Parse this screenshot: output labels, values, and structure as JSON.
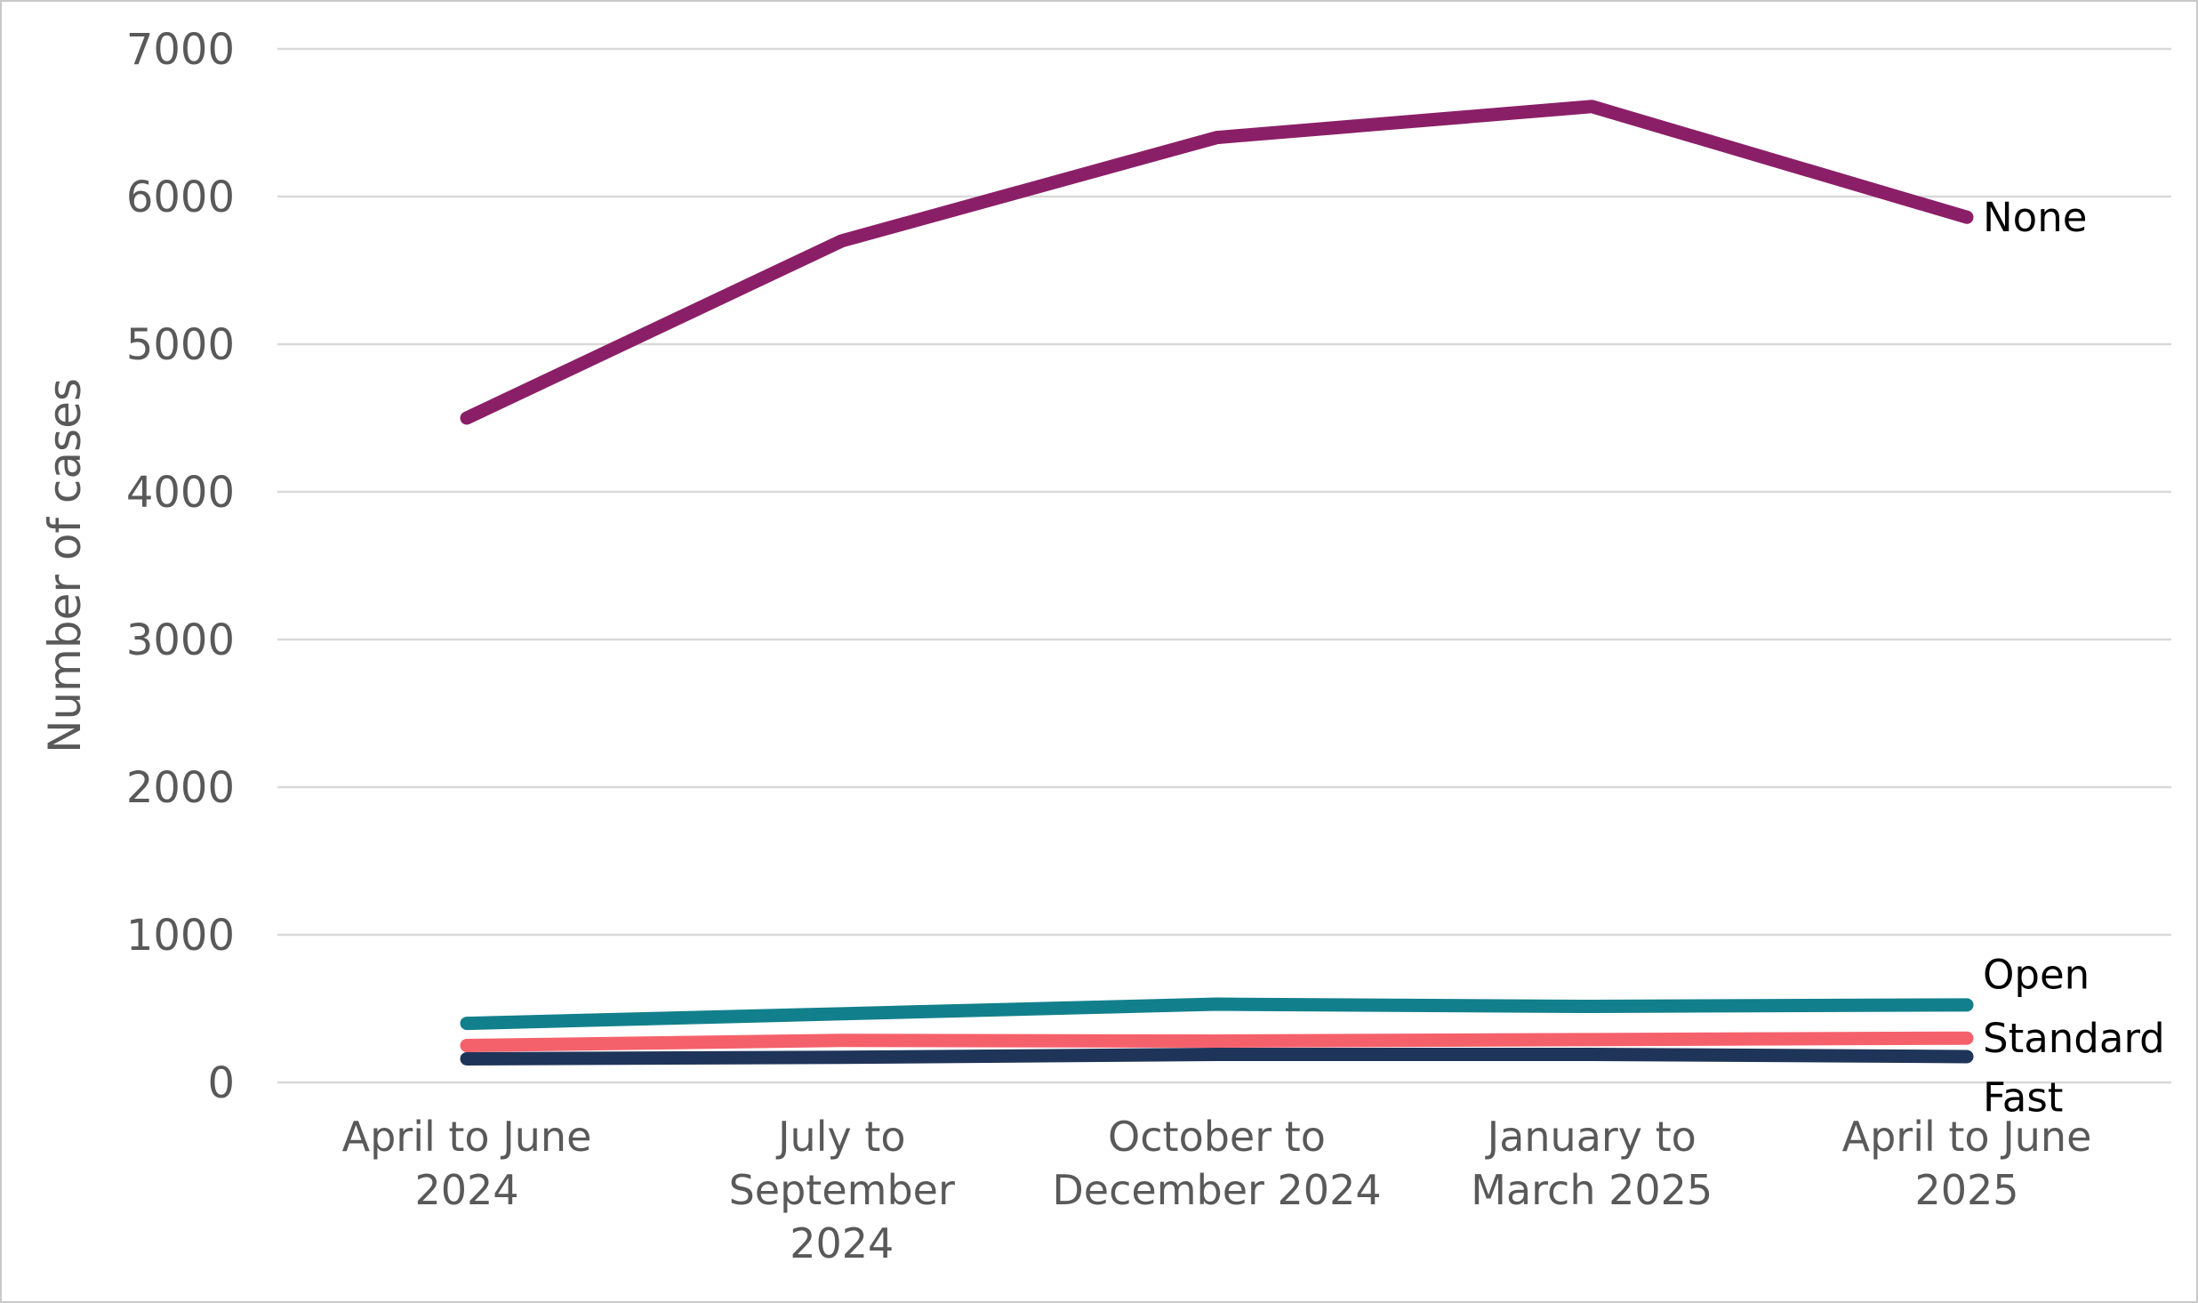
{
  "chart_data": {
    "type": "line",
    "title": "",
    "xlabel": "",
    "ylabel": "Number of cases",
    "ylim": [
      0,
      7000
    ],
    "ytick_step": 1000,
    "yticks": [
      0,
      1000,
      2000,
      3000,
      4000,
      5000,
      6000,
      7000
    ],
    "grid": true,
    "legend_position": "direct-labels-at-line-ends",
    "categories": [
      "April to June 2024",
      "July to September 2024",
      "October to December 2024",
      "January to March 2025",
      "April to June 2025"
    ],
    "category_label_lines": [
      [
        "April to June",
        "2024"
      ],
      [
        "July to",
        "September",
        "2024"
      ],
      [
        "October to",
        "December 2024"
      ],
      [
        "January to",
        "March 2025"
      ],
      [
        "April to June",
        "2025"
      ]
    ],
    "series": [
      {
        "name": "None",
        "color": "#8B1F67",
        "values": [
          4500,
          5700,
          6400,
          6610,
          5860
        ],
        "label_dy": 0
      },
      {
        "name": "Open",
        "color": "#12808C",
        "values": [
          400,
          465,
          530,
          515,
          525
        ],
        "label_dy": -34
      },
      {
        "name": "Standard",
        "color": "#F5616B",
        "values": [
          250,
          285,
          280,
          290,
          300
        ],
        "label_dy": 0
      },
      {
        "name": "Fast",
        "color": "#1F3459",
        "values": [
          160,
          170,
          190,
          190,
          175
        ],
        "label_dy": 46
      }
    ],
    "colors": {
      "grid": "#D9D9D9",
      "axis_text": "#595959",
      "series_label_text": "#000000",
      "background": "#FFFFFF",
      "border": "#C9C9C9"
    }
  }
}
